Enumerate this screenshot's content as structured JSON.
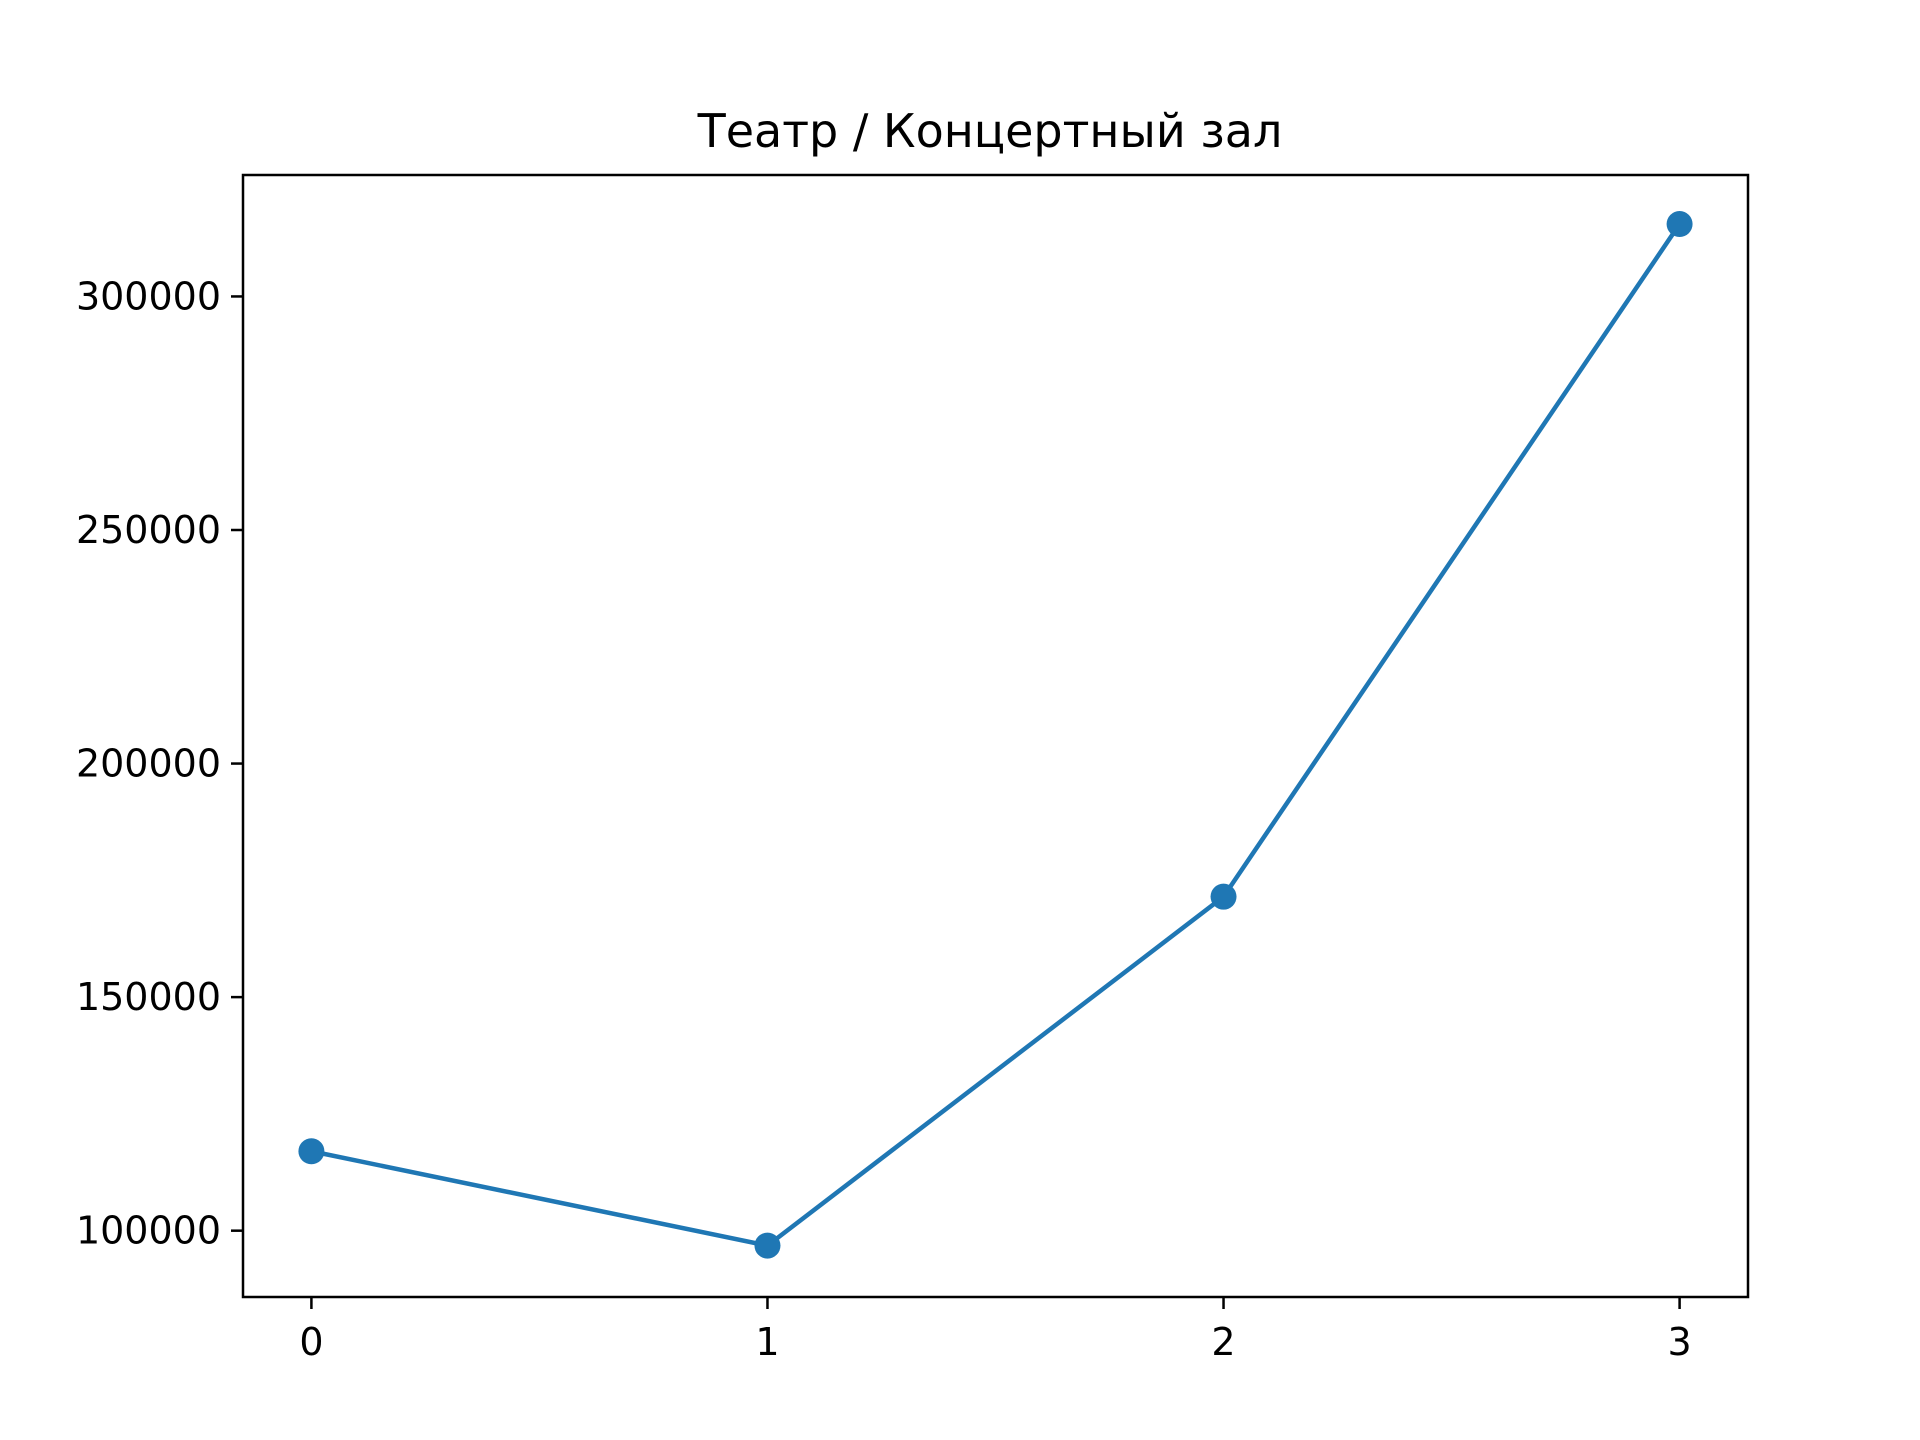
{
  "chart_data": {
    "type": "line",
    "title": "Театр / Концертный зал",
    "xlabel": "",
    "ylabel": "",
    "x": [
      0,
      1,
      2,
      3
    ],
    "x_ticks": [
      0,
      1,
      2,
      3
    ],
    "x_tick_labels": [
      "0",
      "1",
      "2",
      "3"
    ],
    "y_ticks": [
      100000,
      150000,
      200000,
      250000,
      300000
    ],
    "y_tick_labels": [
      "100000",
      "150000",
      "200000",
      "250000",
      "300000"
    ],
    "xlim": [
      -0.15,
      3.15
    ],
    "ylim": [
      85800,
      326000
    ],
    "grid": false,
    "series": [
      {
        "values": [
          117000,
          96800,
          171500,
          315500
        ],
        "color": "#1f77b4",
        "marker": "circle"
      }
    ]
  }
}
